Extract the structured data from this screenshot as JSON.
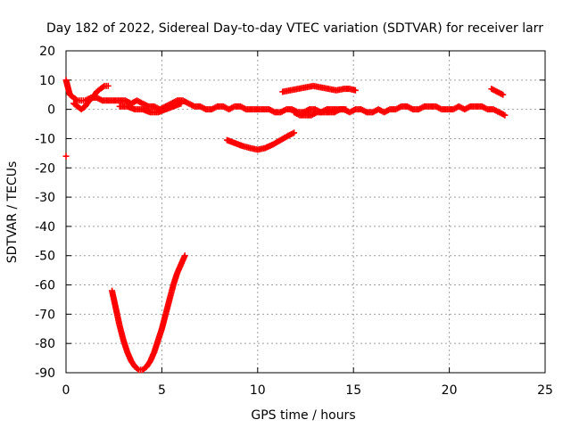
{
  "chart_data": {
    "type": "scatter",
    "title": "Day 182 of 2022, Sidereal Day-to-day VTEC variation (SDTVAR) for receiver larr",
    "xlabel": "GPS time / hours",
    "ylabel": "SDTVAR / TECUs",
    "xlim": [
      0,
      25
    ],
    "ylim": [
      -90,
      20
    ],
    "xticks": [
      0,
      5,
      10,
      15,
      20,
      25
    ],
    "yticks": [
      20,
      10,
      0,
      -10,
      -20,
      -30,
      -40,
      -50,
      -60,
      -70,
      -80,
      -90
    ],
    "grid": true,
    "marker": "+",
    "color": "#ff0000",
    "series": [
      {
        "x": [
          0.0,
          0.2,
          0.4,
          0.6,
          0.8,
          1.0,
          1.3,
          1.6,
          1.9,
          2.2,
          2.5,
          2.8,
          3.1,
          3.4,
          3.7,
          4.0,
          4.3,
          4.6,
          4.9,
          5.2,
          5.5,
          5.8,
          6.1,
          6.4,
          6.7,
          7.0,
          7.3,
          7.6,
          7.9,
          8.2,
          8.5,
          8.8,
          9.1,
          9.4,
          9.7,
          10.0,
          10.3,
          10.6,
          10.9,
          11.2,
          11.5,
          11.8,
          12.1,
          12.4,
          12.7,
          13.0,
          13.3,
          13.6,
          13.9,
          14.2,
          14.5,
          14.8,
          15.1,
          15.4,
          15.7,
          16.0,
          16.3,
          16.6,
          16.9,
          17.2,
          17.5,
          17.8,
          18.1,
          18.4,
          18.7,
          19.0,
          19.3,
          19.6,
          19.9,
          20.2,
          20.5,
          20.8,
          21.1,
          21.4,
          21.7,
          22.0,
          22.3,
          22.6,
          22.9
        ],
        "y": [
          10,
          5,
          4,
          3,
          3,
          3,
          4,
          4,
          3,
          3,
          3,
          3,
          3,
          2,
          3,
          2,
          1,
          1,
          0,
          1,
          2,
          3,
          3,
          2,
          1,
          1,
          0,
          0,
          1,
          1,
          0,
          1,
          1,
          0,
          0,
          0,
          0,
          0,
          -1,
          -1,
          0,
          0,
          -1,
          -1,
          0,
          0,
          -1,
          0,
          0,
          0,
          0,
          -1,
          0,
          0,
          -1,
          -1,
          0,
          -1,
          0,
          0,
          1,
          1,
          0,
          0,
          1,
          1,
          1,
          0,
          0,
          0,
          1,
          0,
          1,
          1,
          1,
          0,
          0,
          -1,
          -2
        ]
      },
      {
        "x": [
          0.4,
          0.6,
          0.8,
          1.0,
          1.2,
          1.4,
          1.6,
          1.8,
          2.0,
          2.2
        ],
        "y": [
          2,
          1,
          0,
          1,
          3,
          4,
          6,
          7,
          8,
          8
        ]
      },
      {
        "x": [
          2.8,
          3.2,
          3.6,
          4.0,
          4.4,
          4.8,
          5.2,
          5.6,
          6.0
        ],
        "y": [
          1,
          1,
          0,
          0,
          -1,
          -1,
          0,
          1,
          2
        ]
      },
      {
        "x": [
          11.9,
          12.2,
          12.5,
          12.8,
          13.1,
          13.4,
          13.7,
          14.0,
          14.3,
          14.6
        ],
        "y": [
          -1,
          -2,
          -2,
          -2,
          -1,
          -1,
          -1,
          -1,
          0,
          0
        ]
      },
      {
        "x": [
          0.0
        ],
        "y": [
          -16
        ]
      },
      {
        "x": [
          8.4,
          8.8,
          9.2,
          9.6,
          10.0,
          10.4,
          10.8,
          11.2,
          11.6,
          11.9
        ],
        "y": [
          -10.5,
          -11.5,
          -12.5,
          -13.2,
          -13.8,
          -13.2,
          -12.0,
          -10.5,
          -9.0,
          -8.0
        ]
      },
      {
        "x": [
          11.3,
          11.7,
          12.1,
          12.5,
          12.9,
          13.3,
          13.7,
          14.1,
          14.5,
          14.8,
          15.1
        ],
        "y": [
          6,
          6.5,
          7,
          7.5,
          8,
          7.5,
          7,
          6.5,
          7,
          7,
          6.5
        ]
      },
      {
        "x": [
          22.2,
          22.5,
          22.8
        ],
        "y": [
          7,
          6,
          5
        ]
      },
      {
        "x": [
          2.4,
          2.6,
          2.8,
          3.0,
          3.2,
          3.4,
          3.6,
          3.8,
          4.0,
          4.2,
          4.4,
          4.6,
          4.8,
          5.0,
          5.2,
          5.4,
          5.6,
          5.8,
          6.0,
          6.2
        ],
        "y": [
          -62,
          -68,
          -74,
          -79,
          -83,
          -86,
          -88,
          -89,
          -89,
          -88,
          -86,
          -83,
          -79,
          -75,
          -70,
          -65,
          -60,
          -56,
          -53,
          -50
        ]
      }
    ]
  }
}
